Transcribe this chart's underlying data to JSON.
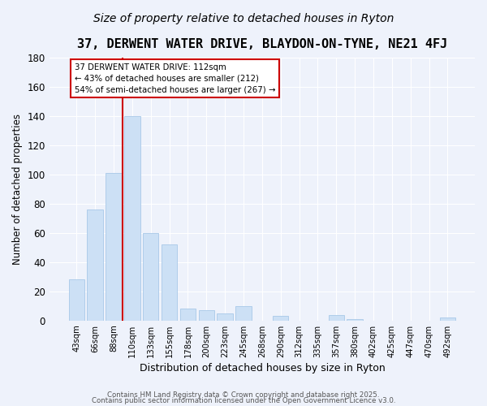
{
  "title": "37, DERWENT WATER DRIVE, BLAYDON-ON-TYNE, NE21 4FJ",
  "subtitle": "Size of property relative to detached houses in Ryton",
  "xlabel": "Distribution of detached houses by size in Ryton",
  "ylabel": "Number of detached properties",
  "bar_color": "#cce0f5",
  "bar_edge_color": "#a8c8e8",
  "categories": [
    "43sqm",
    "66sqm",
    "88sqm",
    "110sqm",
    "133sqm",
    "155sqm",
    "178sqm",
    "200sqm",
    "223sqm",
    "245sqm",
    "268sqm",
    "290sqm",
    "312sqm",
    "335sqm",
    "357sqm",
    "380sqm",
    "402sqm",
    "425sqm",
    "447sqm",
    "470sqm",
    "492sqm"
  ],
  "values": [
    28,
    76,
    101,
    140,
    60,
    52,
    8,
    7,
    5,
    10,
    0,
    3,
    0,
    0,
    4,
    1,
    0,
    0,
    0,
    0,
    2
  ],
  "ylim": [
    0,
    180
  ],
  "yticks": [
    0,
    20,
    40,
    60,
    80,
    100,
    120,
    140,
    160,
    180
  ],
  "reference_line_index": 3,
  "annotation_line1": "37 DERWENT WATER DRIVE: 112sqm",
  "annotation_line2": "← 43% of detached houses are smaller (212)",
  "annotation_line3": "54% of semi-detached houses are larger (267) →",
  "annotation_box_color": "#ffffff",
  "annotation_box_edge_color": "#cc0000",
  "reference_line_color": "#cc0000",
  "footer_line1": "Contains HM Land Registry data © Crown copyright and database right 2025.",
  "footer_line2": "Contains public sector information licensed under the Open Government Licence v3.0.",
  "bg_color": "#eef2fb",
  "title_fontsize": 11,
  "subtitle_fontsize": 10,
  "grid_color": "#ffffff"
}
